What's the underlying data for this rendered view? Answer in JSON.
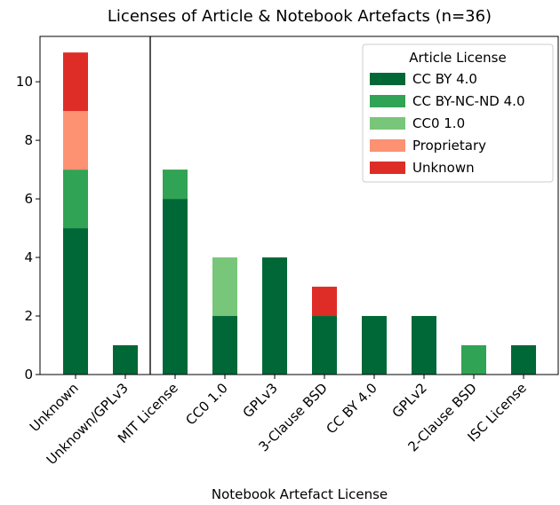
{
  "chart_data": {
    "type": "stacked_bar",
    "title": "Licenses of Article & Notebook Artefacts (n=36)",
    "x_label": "Notebook Artefact License",
    "categories": [
      "Unknown",
      "Unknown/GPLv3",
      "MIT License",
      "CC0 1.0",
      "GPLv3",
      "3-Clause BSD",
      "CC BY 4.0",
      "GPLv2",
      "2-Clause BSD",
      "ISC License"
    ],
    "series": [
      {
        "name": "CC BY 4.0",
        "color": "#006837",
        "values": [
          5,
          1,
          6,
          2,
          4,
          2,
          2,
          2,
          0,
          1
        ]
      },
      {
        "name": "CC BY-NC-ND 4.0",
        "color": "#31a354",
        "values": [
          2,
          0,
          1,
          0,
          0,
          0,
          0,
          0,
          1,
          0
        ]
      },
      {
        "name": "CC0 1.0",
        "color": "#78c679",
        "values": [
          0,
          0,
          0,
          2,
          0,
          0,
          0,
          0,
          0,
          0
        ]
      },
      {
        "name": "Proprietary",
        "color": "#fc9272",
        "values": [
          2,
          0,
          0,
          0,
          0,
          0,
          0,
          0,
          0,
          0
        ]
      },
      {
        "name": "Unknown",
        "color": "#de2d26",
        "values": [
          2,
          0,
          0,
          0,
          0,
          1,
          0,
          0,
          0,
          0
        ]
      }
    ],
    "legend_title": "Article License",
    "legend": "upper right",
    "ylim": [
      0,
      11.55
    ],
    "yticks": [
      0,
      2,
      4,
      6,
      8,
      10
    ]
  }
}
